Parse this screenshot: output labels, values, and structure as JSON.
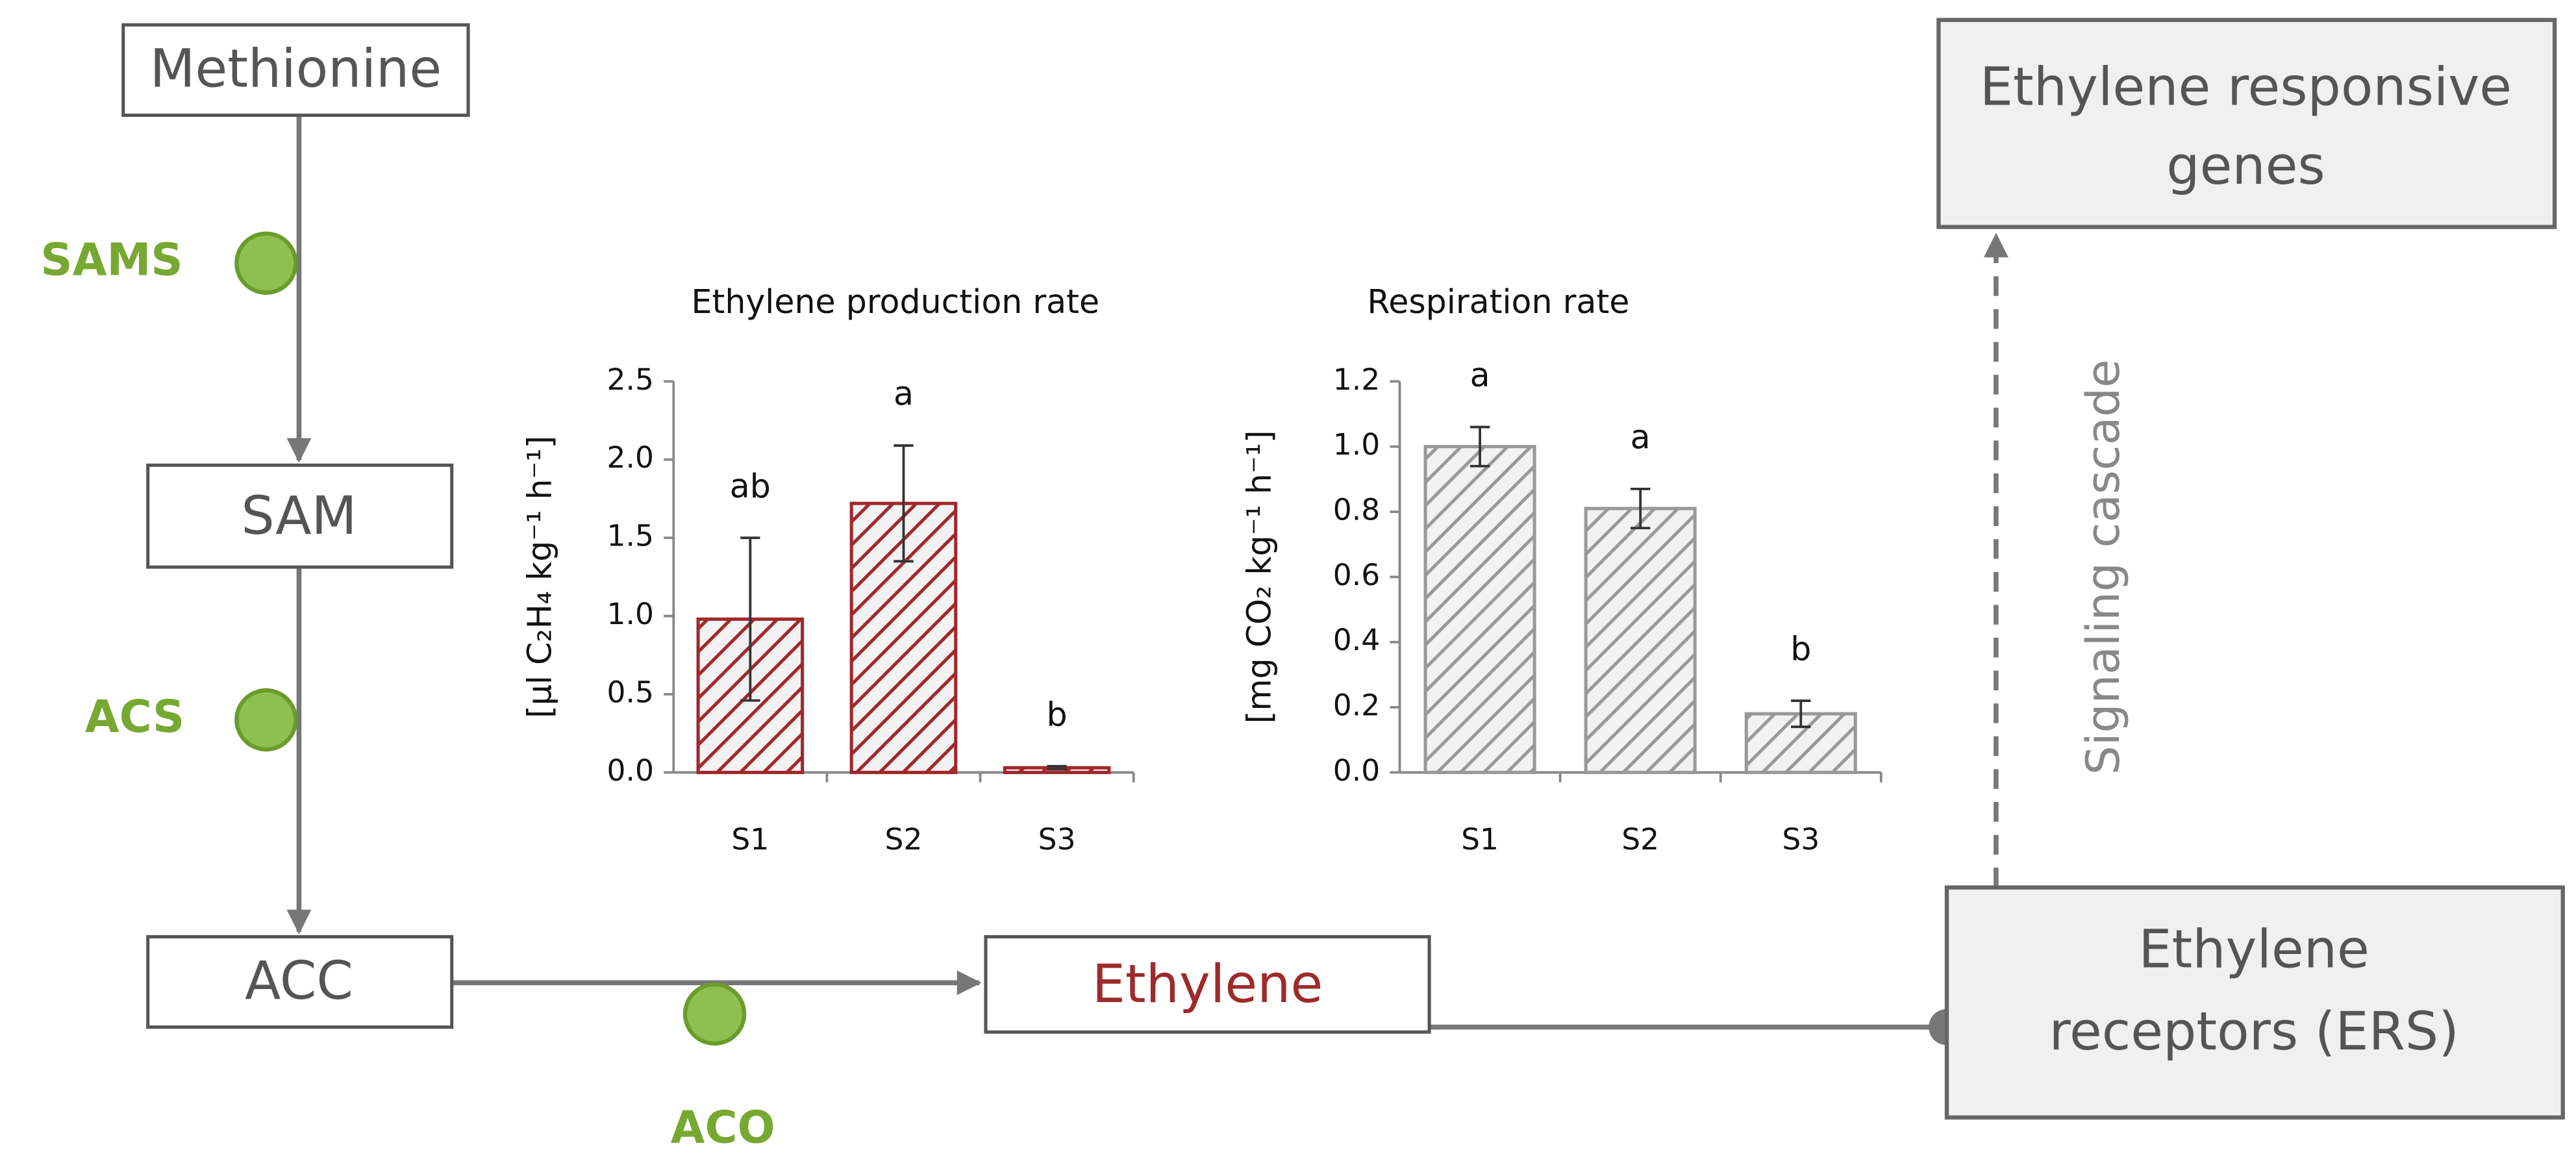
{
  "diagram": {
    "nodes": [
      {
        "lines": [
          "Methionine"
        ]
      },
      {
        "lines": [
          "SAM"
        ]
      },
      {
        "lines": [
          "ACC"
        ]
      },
      {
        "lines": [
          "Ethylene"
        ]
      },
      {
        "lines": [
          "Ethylene",
          "receptors  (ERS)"
        ]
      },
      {
        "lines": [
          "Ethylene responsive",
          "genes"
        ]
      }
    ],
    "enzymes": [
      "SAMS",
      "ACS",
      "ACO"
    ],
    "edge_label": "Signaling cascade"
  },
  "chart_data": [
    {
      "type": "bar",
      "title": "Ethylene production rate",
      "ylabel": "[µl C₂H₄ kg⁻¹ h⁻¹]",
      "categories": [
        "S1",
        "S2",
        "S3"
      ],
      "values": [
        0.98,
        1.72,
        0.03
      ],
      "errors": [
        0.52,
        0.37,
        0.01
      ],
      "annotations": [
        "ab",
        "a",
        "b"
      ],
      "color": "#a0282c",
      "ylim": [
        0,
        2.5
      ],
      "yticks": [
        {
          "value": 0,
          "label": "0.0"
        },
        0.5,
        {
          "value": 1,
          "label": "1.0"
        },
        1.5,
        {
          "value": 2,
          "label": "2.0"
        },
        2.5
      ]
    },
    {
      "type": "bar",
      "title": "Respiration rate",
      "ylabel": "[mg CO₂ kg⁻¹ h⁻¹]",
      "categories": [
        "S1",
        "S2",
        "S3"
      ],
      "values": [
        1.0,
        0.81,
        0.18
      ],
      "errors": [
        0.06,
        0.06,
        0.04
      ],
      "annotations": [
        "a",
        "a",
        "b"
      ],
      "color": "#999999",
      "ylim": [
        0,
        1.2
      ],
      "yticks": [
        {
          "value": 0,
          "label": "0.0"
        },
        0.2,
        0.4,
        0.6,
        0.8,
        {
          "value": 1,
          "label": "1.0"
        },
        1.2
      ]
    }
  ]
}
